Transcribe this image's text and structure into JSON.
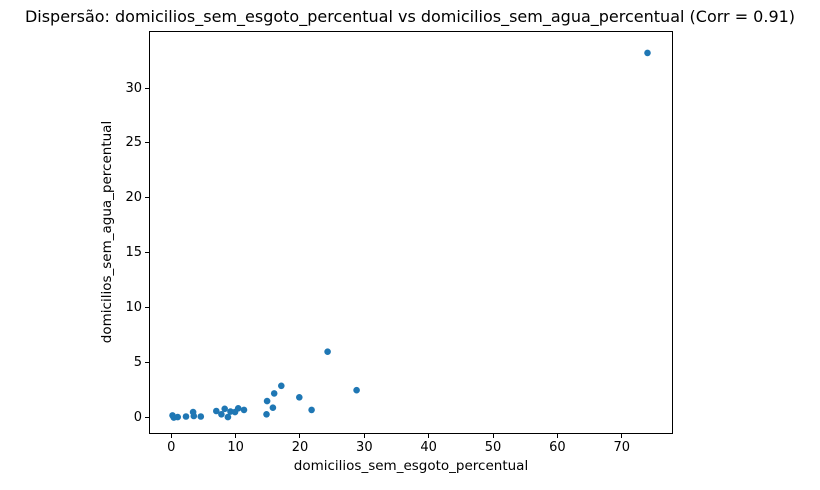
{
  "figure": {
    "background": "#ffffff"
  },
  "chart_data": {
    "type": "scatter",
    "title": "Dispersão: domicilios_sem_esgoto_percentual vs domicilios_sem_agua_percentual (Corr = 0.91)",
    "xlabel": "domicilios_sem_esgoto_percentual",
    "ylabel": "domicilios_sem_agua_percentual",
    "correlation": 0.91,
    "xlim": [
      -3.3,
      77.8
    ],
    "ylim": [
      -1.4,
      35.1
    ],
    "xticks": [
      0,
      10,
      20,
      30,
      40,
      50,
      60,
      70
    ],
    "yticks": [
      0,
      5,
      10,
      15,
      20,
      25,
      30
    ],
    "grid": false,
    "legend": null,
    "marker_color": "#1f77b4",
    "marker_radius": 3.3,
    "axis_color": "#000000",
    "points": [
      [
        0.2,
        0.2
      ],
      [
        0.4,
        0.0
      ],
      [
        1.0,
        0.05
      ],
      [
        2.3,
        0.1
      ],
      [
        3.4,
        0.5
      ],
      [
        3.5,
        0.15
      ],
      [
        4.6,
        0.1
      ],
      [
        7.0,
        0.6
      ],
      [
        7.8,
        0.3
      ],
      [
        8.3,
        0.8
      ],
      [
        8.8,
        0.05
      ],
      [
        9.2,
        0.55
      ],
      [
        9.9,
        0.5
      ],
      [
        10.4,
        0.85
      ],
      [
        11.3,
        0.7
      ],
      [
        14.8,
        0.3
      ],
      [
        14.9,
        1.5
      ],
      [
        15.8,
        0.9
      ],
      [
        16.0,
        2.2
      ],
      [
        17.1,
        2.9
      ],
      [
        19.9,
        1.85
      ],
      [
        21.8,
        0.7
      ],
      [
        24.3,
        6.0
      ],
      [
        28.8,
        2.5
      ],
      [
        74.0,
        33.2
      ]
    ]
  }
}
